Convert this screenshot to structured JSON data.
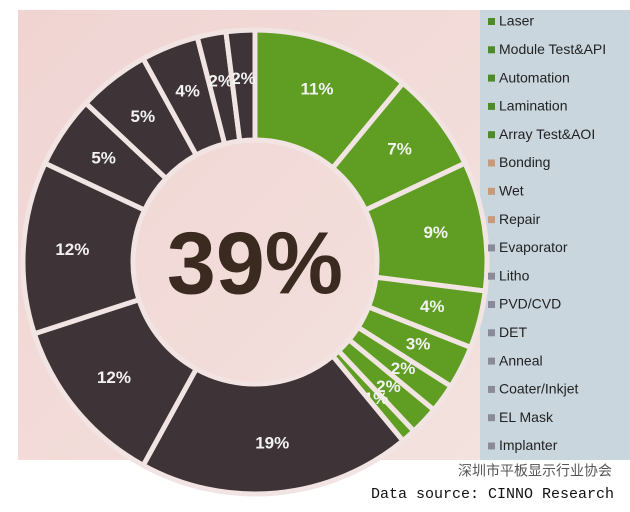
{
  "chart_data": {
    "type": "donut",
    "center_label": "39%",
    "categories": [
      "Laser",
      "Module Test&API",
      "Automation",
      "Lamination",
      "Array Test&AOI",
      "Bonding",
      "Wet",
      "Repair",
      "Evaporator",
      "Litho",
      "PVD/CVD",
      "DET",
      "Anneal",
      "Coater/Inkjet",
      "EL Mask",
      "Implanter"
    ],
    "values": [
      11,
      7,
      9,
      4,
      3,
      2,
      2,
      1,
      19,
      12,
      12,
      5,
      5,
      4,
      2,
      2
    ],
    "value_labels": [
      "11%",
      "7%",
      "9%",
      "4%",
      "3%",
      "2%",
      "2%",
      "1%",
      "19%",
      "12%",
      "12%",
      "5%",
      "5%",
      "4%",
      "2%",
      "2%"
    ],
    "colors": [
      "#5f9e23",
      "#5f9e23",
      "#5f9e23",
      "#5f9e23",
      "#5f9e23",
      "#5f9e23",
      "#5f9e23",
      "#5f9e23",
      "#3e3336",
      "#3e3336",
      "#3e3336",
      "#3e3336",
      "#3e3336",
      "#3e3336",
      "#3e3336",
      "#3e3336"
    ],
    "legend_colors": [
      "#4e8a2a",
      "#4e8a2a",
      "#4e8a2a",
      "#4e8a2a",
      "#4e8a2a",
      "#c89a7a",
      "#c89a7a",
      "#c89a7a",
      "#8a8a9a",
      "#8a8a9a",
      "#8a8a9a",
      "#8a8a9a",
      "#8a8a9a",
      "#8a8a9a",
      "#8a8a9a",
      "#8a8a9a"
    ],
    "legend": "right",
    "source": "Data source: CINNO Research",
    "watermark": "深圳市平板显示行业协会"
  }
}
